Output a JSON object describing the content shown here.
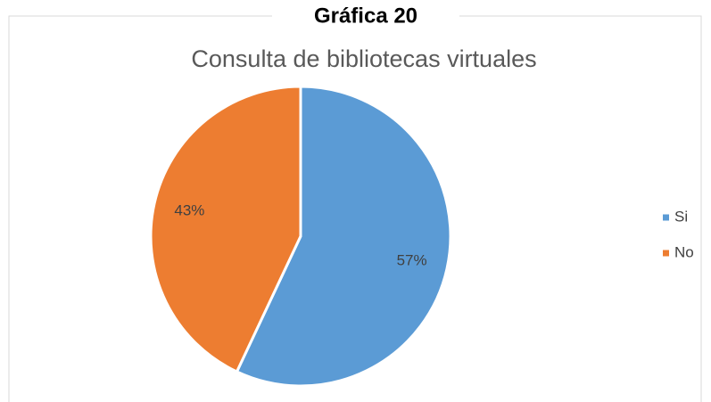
{
  "chart_data": {
    "type": "pie",
    "title": "Gráfica 20",
    "subtitle": "Consulta de bibliotecas virtuales",
    "categories": [
      "Si",
      "No"
    ],
    "values": [
      57,
      43
    ],
    "value_labels": [
      "57%",
      "43%"
    ],
    "colors": [
      "#5b9bd5",
      "#ed7d31"
    ],
    "legend": "right"
  }
}
